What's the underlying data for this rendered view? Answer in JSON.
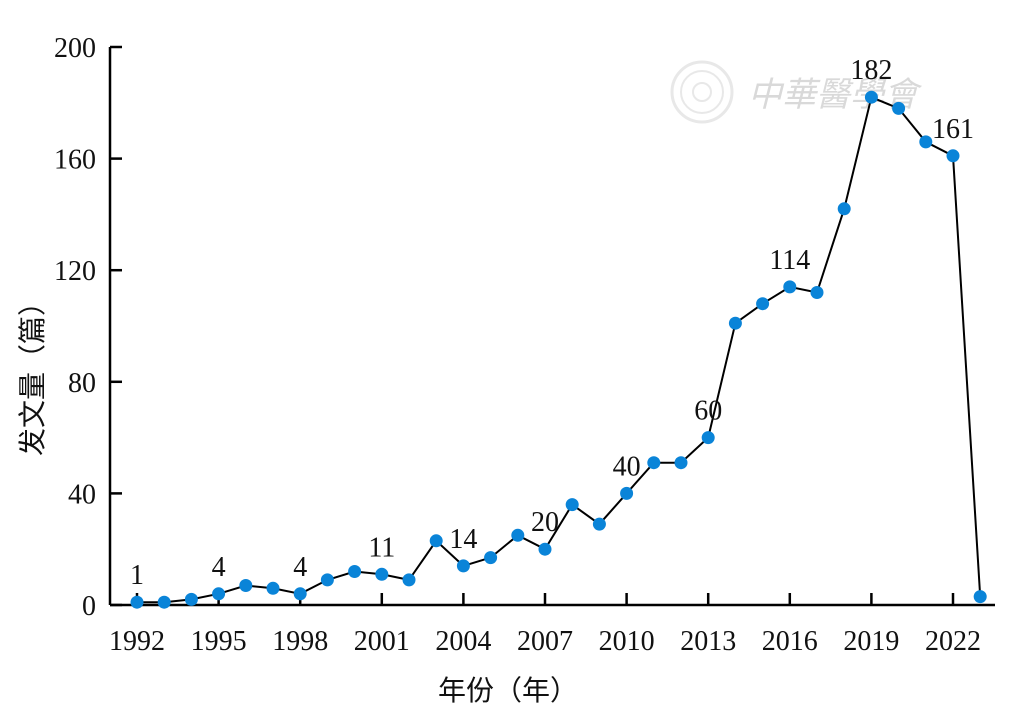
{
  "chart_data": {
    "type": "line",
    "xlabel": "年份（年）",
    "ylabel": "发文量（篇）",
    "ylim": [
      0,
      200
    ],
    "yticks": [
      0,
      40,
      80,
      120,
      160,
      200
    ],
    "xlim": [
      1992,
      2023
    ],
    "xticks": [
      1992,
      1995,
      1998,
      2001,
      2004,
      2007,
      2010,
      2013,
      2016,
      2019,
      2022
    ],
    "grid": false,
    "series": [
      {
        "x": [
          1992,
          1993,
          1994,
          1995,
          1996,
          1997,
          1998,
          1999,
          2000,
          2001,
          2002,
          2003,
          2004,
          2005,
          2006,
          2007,
          2008,
          2009,
          2010,
          2011,
          2012,
          2013,
          2014,
          2015,
          2016,
          2017,
          2018,
          2019,
          2020,
          2021,
          2022,
          2023
        ],
        "values": [
          1,
          1,
          2,
          4,
          7,
          6,
          4,
          9,
          12,
          11,
          9,
          23,
          14,
          17,
          25,
          20,
          36,
          29,
          40,
          51,
          51,
          60,
          101,
          108,
          114,
          112,
          142,
          182,
          178,
          166,
          161,
          3
        ]
      }
    ],
    "annotations": [
      {
        "x": 1992,
        "y": 1,
        "text": "1"
      },
      {
        "x": 1995,
        "y": 4,
        "text": "4"
      },
      {
        "x": 1998,
        "y": 4,
        "text": "4"
      },
      {
        "x": 2001,
        "y": 11,
        "text": "11"
      },
      {
        "x": 2004,
        "y": 14,
        "text": "14"
      },
      {
        "x": 2007,
        "y": 20,
        "text": "20"
      },
      {
        "x": 2010,
        "y": 40,
        "text": "40"
      },
      {
        "x": 2013,
        "y": 60,
        "text": "60"
      },
      {
        "x": 2016,
        "y": 114,
        "text": "114"
      },
      {
        "x": 2019,
        "y": 182,
        "text": "182"
      },
      {
        "x": 2022,
        "y": 161,
        "text": "161"
      }
    ],
    "colors": {
      "point": "#0a84d8",
      "line": "#000000",
      "axis": "#000000"
    }
  },
  "watermark": {
    "text": "中華醫學會",
    "icon": "seal-icon"
  }
}
